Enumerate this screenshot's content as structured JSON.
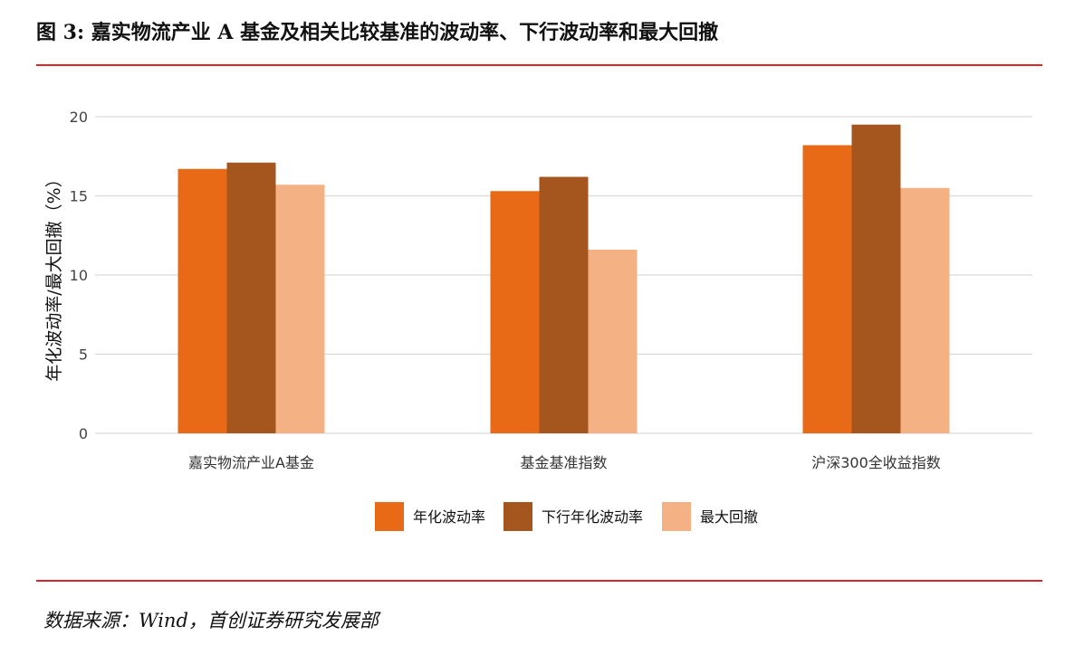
{
  "figure": {
    "title": "图 3: 嘉实物流产业 A 基金及相关比较基准的波动率、下行波动率和最大回撤",
    "source": "数据来源：Wind，首创证券研究发展部"
  },
  "colors": {
    "rule": "#d9262b",
    "grid": "#d9d9d9",
    "series": [
      "#e86a17",
      "#a5561f",
      "#f4b183"
    ]
  },
  "chart_data": {
    "type": "bar",
    "title": "",
    "xlabel": "",
    "ylabel": "年化波动率/最大回撤（%）",
    "categories": [
      "嘉实物流产业A基金",
      "基金基准指数",
      "沪深300全收益指数"
    ],
    "series": [
      {
        "name": "年化波动率",
        "values": [
          16.7,
          15.3,
          18.2
        ]
      },
      {
        "name": "下行年化波动率",
        "values": [
          17.1,
          16.2,
          19.5
        ]
      },
      {
        "name": "最大回撤",
        "values": [
          15.7,
          11.6,
          15.5
        ]
      }
    ],
    "yticks": [
      "0",
      "5",
      "10",
      "15",
      "20"
    ],
    "ylim": [
      0,
      20
    ],
    "grid": true,
    "legend": "bottom"
  }
}
